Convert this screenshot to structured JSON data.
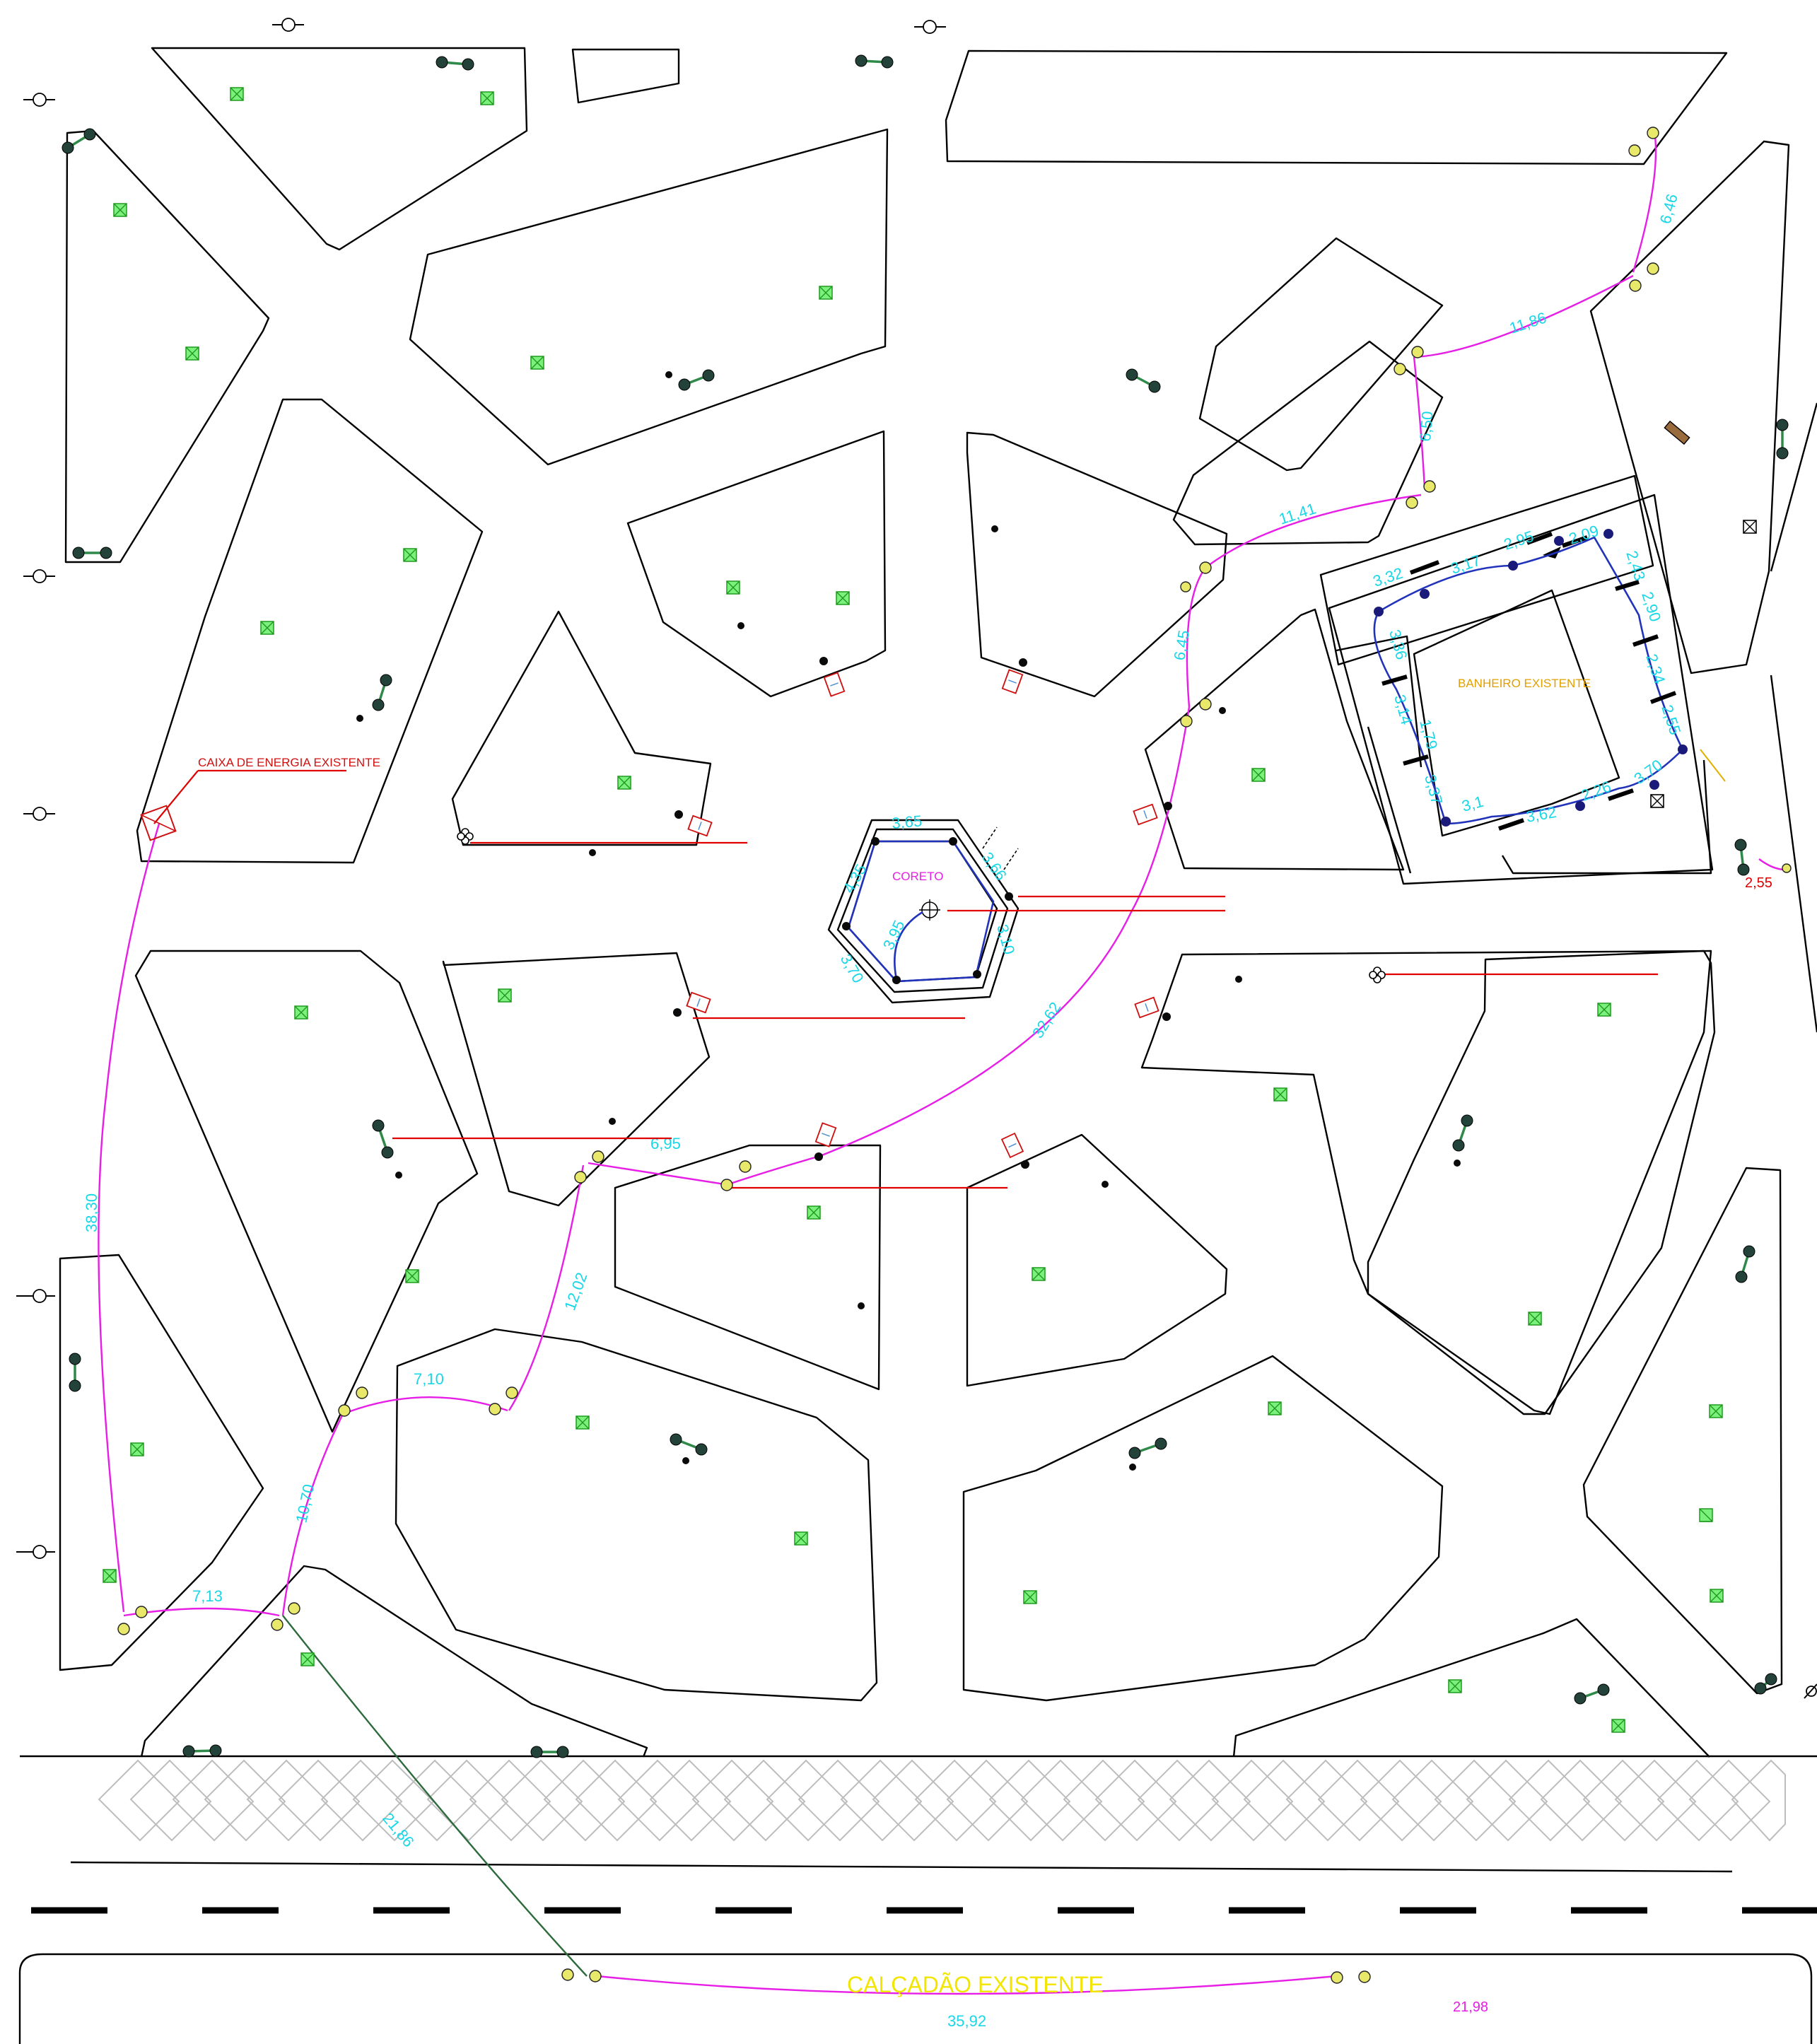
{
  "labels": {
    "caixa_energia": "CAIXA DE ENERGIA EXISTENTE",
    "banheiro": "BANHEIRO EXISTENTE",
    "coreto": "CORETO",
    "calcadao": "CALÇADÃO EXISTENTE"
  },
  "notes": {
    "note_1": "",
    "note_2": "",
    "note_3": "",
    "note_4": "",
    "note_5": "",
    "note_6": ""
  },
  "dimensions": {
    "d_6_46": "6,46",
    "d_11_86": "11,86",
    "d_6_50": "6,50",
    "d_11_41": "11,41",
    "d_6_45": "6,45",
    "d_32_62": "32,62",
    "d_38_30": "38,30",
    "d_6_95": "6,95",
    "d_12_02": "12,02",
    "d_7_10": "7,10",
    "d_10_70": "10,70",
    "d_7_13": "7,13",
    "d_21_86": "21,86",
    "d_35_92": "35,92",
    "d_21_98": "21,98",
    "d_2_55": "2,55",
    "c_3_65": "3,65",
    "c_4_35": "4,35",
    "c_3_95": "3,95",
    "c_3_70": "3,70",
    "c_3_66": "3,66",
    "c_3_10": "3,10",
    "b_3_32": "3,32",
    "b_3_17": "3,17",
    "b_2_95": "2,95",
    "b_2_09": "2,09",
    "b_2_43": "2,43",
    "b_2_90": "2,90",
    "b_2_34": "2,34",
    "b_2_55": "2,55",
    "b_3_36": "3,36",
    "b_3_14": "3,14",
    "b_1_79": "1,79",
    "b_3_37": "3,37",
    "b_3_1": "3,1",
    "b_3_62": "3,62",
    "b_2_26": "2,26",
    "b_3_70": "3,70"
  },
  "colors": {
    "line_work": "#000000",
    "cable_magenta": "#e61ee6",
    "cable_blue": "#2233bb",
    "cable_green": "#2e6b3c",
    "dimension_cyan": "#19d7e6",
    "label_red": "#d01010",
    "label_orange": "#e0a000",
    "label_yellow": "#f2e600",
    "tree_green": "#7cf07c"
  },
  "icons": {
    "tree": "tree-box-icon",
    "post": "double-lamp-post-icon",
    "lamp": "yellow-lamp-icon",
    "sign": "sign-box-icon",
    "power": "power-box-icon",
    "flower": "flower-icon"
  }
}
